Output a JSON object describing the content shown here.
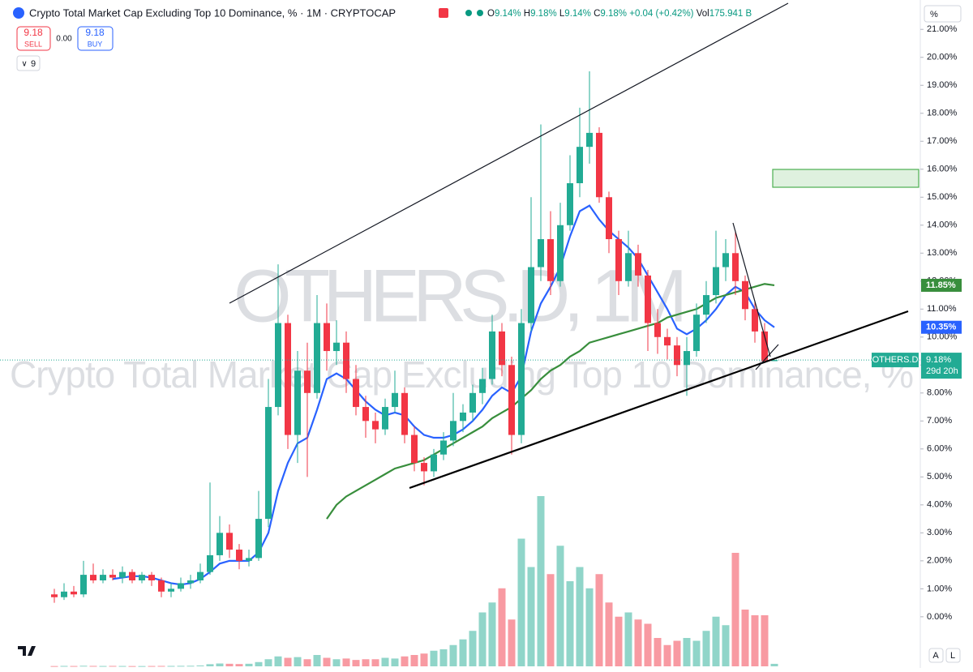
{
  "ui": {
    "sell_price": "9.18",
    "sell_label": "SELL",
    "spread": "0.00",
    "buy_price": "9.18",
    "buy_label": "BUY",
    "indicator_count": "9",
    "scale_percent": "%",
    "scale_auto": "A",
    "scale_log": "L"
  },
  "chart_data": {
    "type": "candlestick",
    "title": "Crypto Total Market Cap Excluding Top 10 Dominance, % · 1M · CRYPTOCAP",
    "readout": [
      {
        "label": "O",
        "value": "9.14%"
      },
      {
        "label": "H",
        "value": "9.18%"
      },
      {
        "label": "L",
        "value": "9.14%"
      },
      {
        "label": "C",
        "value": "9.18%"
      }
    ],
    "change": "+0.04 (+0.42%)",
    "volume_label": "Vol",
    "volume_readout": "175.941 B",
    "watermark": [
      "OTHERS.D, 1M",
      "Crypto Total Market Cap Excluding Top 10 Dominance, %"
    ],
    "up_color": "#22ab94",
    "down_color": "#f23645",
    "series": [
      {
        "name": "OTHERS.D",
        "ohlc": [
          [
            0.8,
            1.0,
            0.5,
            0.7
          ],
          [
            0.7,
            1.2,
            0.6,
            0.9
          ],
          [
            0.9,
            1.1,
            0.7,
            0.8
          ],
          [
            0.8,
            2.0,
            0.7,
            1.5
          ],
          [
            1.5,
            1.9,
            1.2,
            1.3
          ],
          [
            1.3,
            1.7,
            1.2,
            1.5
          ],
          [
            1.5,
            1.7,
            1.3,
            1.4
          ],
          [
            1.4,
            1.8,
            1.2,
            1.6
          ],
          [
            1.6,
            1.7,
            1.2,
            1.3
          ],
          [
            1.3,
            1.6,
            1.2,
            1.5
          ],
          [
            1.5,
            1.6,
            1.1,
            1.3
          ],
          [
            1.3,
            1.4,
            0.7,
            0.9
          ],
          [
            0.9,
            1.2,
            0.7,
            1.0
          ],
          [
            1.0,
            1.4,
            0.9,
            1.2
          ],
          [
            1.2,
            1.5,
            1.0,
            1.3
          ],
          [
            1.3,
            1.9,
            1.2,
            1.6
          ],
          [
            1.6,
            4.8,
            1.5,
            2.2
          ],
          [
            2.2,
            3.6,
            2.0,
            3.0
          ],
          [
            3.0,
            3.3,
            2.1,
            2.4
          ],
          [
            2.4,
            2.6,
            1.7,
            2.0
          ],
          [
            2.0,
            2.4,
            1.8,
            2.1
          ],
          [
            2.1,
            4.5,
            2.0,
            3.5
          ],
          [
            3.5,
            8.5,
            3.2,
            7.5
          ],
          [
            7.5,
            12.6,
            7.2,
            10.5
          ],
          [
            10.5,
            10.8,
            6.0,
            6.5
          ],
          [
            6.5,
            9.5,
            5.5,
            8.8
          ],
          [
            8.8,
            9.8,
            5.0,
            8.0
          ],
          [
            8.0,
            11.5,
            7.8,
            10.5
          ],
          [
            10.5,
            11.2,
            8.8,
            9.5
          ],
          [
            9.5,
            10.6,
            9.0,
            9.8
          ],
          [
            9.8,
            10.2,
            8.0,
            8.5
          ],
          [
            8.5,
            9.0,
            7.2,
            7.5
          ],
          [
            7.5,
            7.9,
            6.4,
            7.0
          ],
          [
            7.0,
            7.3,
            6.2,
            6.7
          ],
          [
            6.7,
            7.8,
            6.5,
            7.5
          ],
          [
            7.5,
            8.8,
            7.3,
            8.0
          ],
          [
            8.0,
            8.2,
            6.2,
            6.5
          ],
          [
            6.5,
            6.8,
            5.2,
            5.5
          ],
          [
            5.5,
            5.7,
            4.7,
            5.2
          ],
          [
            5.2,
            6.0,
            5.0,
            5.8
          ],
          [
            5.8,
            6.6,
            5.6,
            6.3
          ],
          [
            6.3,
            8.0,
            6.1,
            7.0
          ],
          [
            7.0,
            7.6,
            6.6,
            7.3
          ],
          [
            7.3,
            8.3,
            7.0,
            8.0
          ],
          [
            8.0,
            8.9,
            7.6,
            8.5
          ],
          [
            8.5,
            10.8,
            8.3,
            10.2
          ],
          [
            10.2,
            10.5,
            8.6,
            9.0
          ],
          [
            9.0,
            9.3,
            5.8,
            6.5
          ],
          [
            6.5,
            11.0,
            6.2,
            10.5
          ],
          [
            10.5,
            15.0,
            10.2,
            12.5
          ],
          [
            12.5,
            17.6,
            12.0,
            13.5
          ],
          [
            13.5,
            14.5,
            11.5,
            12.0
          ],
          [
            12.0,
            14.8,
            11.8,
            14.0
          ],
          [
            14.0,
            16.5,
            13.8,
            15.5
          ],
          [
            15.5,
            18.2,
            15.0,
            16.8
          ],
          [
            16.8,
            19.5,
            16.2,
            17.3
          ],
          [
            17.3,
            17.5,
            14.8,
            15.0
          ],
          [
            15.0,
            15.2,
            13.0,
            13.5
          ],
          [
            13.5,
            13.8,
            11.5,
            12.0
          ],
          [
            12.0,
            13.8,
            11.8,
            13.0
          ],
          [
            13.0,
            13.3,
            11.8,
            12.2
          ],
          [
            12.2,
            12.4,
            9.5,
            10.5
          ],
          [
            10.5,
            11.0,
            9.4,
            10.0
          ],
          [
            10.0,
            10.3,
            9.2,
            9.7
          ],
          [
            9.7,
            10.0,
            8.6,
            9.0
          ],
          [
            9.0,
            10.0,
            7.9,
            9.5
          ],
          [
            9.5,
            11.2,
            9.3,
            10.8
          ],
          [
            10.8,
            12.0,
            10.5,
            11.5
          ],
          [
            11.5,
            13.8,
            11.2,
            12.5
          ],
          [
            12.5,
            13.5,
            12.0,
            13.0
          ],
          [
            13.0,
            13.8,
            11.5,
            12.0
          ],
          [
            12.0,
            12.2,
            10.6,
            11.0
          ],
          [
            11.0,
            11.3,
            9.8,
            10.2
          ],
          [
            10.2,
            10.5,
            9.1,
            9.14
          ],
          [
            9.14,
            9.18,
            9.14,
            9.18
          ]
        ]
      }
    ],
    "price_tag": {
      "symbol": "OTHERS.D",
      "price": "9.18%",
      "countdown": "29d 20h",
      "value": 9.18
    },
    "ma_lines": [
      {
        "color": "#2962ff",
        "label": "10.35%",
        "values": [
          null,
          null,
          null,
          null,
          null,
          null,
          1.35,
          1.4,
          1.45,
          1.45,
          1.4,
          1.3,
          1.2,
          1.15,
          1.2,
          1.35,
          1.6,
          1.9,
          2.0,
          2.0,
          2.0,
          2.3,
          3.0,
          4.5,
          5.5,
          6.2,
          6.4,
          7.4,
          8.5,
          8.7,
          8.5,
          8.1,
          7.7,
          7.4,
          7.2,
          7.3,
          7.2,
          6.8,
          6.5,
          6.4,
          6.4,
          6.5,
          6.7,
          7.0,
          7.4,
          7.9,
          8.2,
          8.0,
          8.6,
          10.2,
          11.2,
          11.8,
          12.5,
          13.6,
          14.5,
          14.7,
          14.2,
          13.8,
          13.5,
          13.2,
          12.8,
          12.2,
          11.6,
          11.0,
          10.3,
          10.1,
          10.3,
          10.6,
          11.0,
          11.5,
          11.8,
          11.6,
          11.0,
          10.6,
          10.35
        ]
      },
      {
        "color": "#388e3c",
        "label": "11.85%",
        "values": [
          null,
          null,
          null,
          null,
          null,
          null,
          null,
          null,
          null,
          null,
          null,
          null,
          null,
          null,
          null,
          null,
          null,
          null,
          null,
          null,
          null,
          null,
          null,
          null,
          null,
          null,
          null,
          null,
          3.5,
          4.0,
          4.3,
          4.5,
          4.7,
          4.9,
          5.1,
          5.3,
          5.4,
          5.5,
          5.6,
          5.8,
          6.0,
          6.2,
          6.4,
          6.6,
          6.8,
          7.1,
          7.3,
          7.5,
          7.8,
          8.1,
          8.5,
          8.8,
          9.0,
          9.3,
          9.5,
          9.8,
          9.9,
          10.0,
          10.1,
          10.2,
          10.3,
          10.4,
          10.5,
          10.7,
          10.8,
          10.9,
          11.0,
          11.2,
          11.4,
          11.5,
          11.6,
          11.7,
          11.8,
          11.9,
          11.85
        ]
      }
    ],
    "volume": {
      "values": [
        20,
        30,
        25,
        40,
        30,
        25,
        30,
        25,
        20,
        20,
        25,
        30,
        30,
        35,
        40,
        60,
        150,
        200,
        180,
        160,
        180,
        300,
        500,
        700,
        600,
        650,
        500,
        800,
        600,
        500,
        550,
        450,
        500,
        500,
        600,
        550,
        700,
        800,
        900,
        1100,
        1200,
        1500,
        1900,
        2500,
        3800,
        4500,
        5500,
        3300,
        9000,
        7000,
        12000,
        6500,
        8500,
        6000,
        7000,
        5500,
        6500,
        4500,
        3500,
        3800,
        3300,
        3000,
        2000,
        1500,
        1800,
        2000,
        1800,
        2500,
        3500,
        2900,
        8000,
        4000,
        3600,
        3600,
        175.941
      ],
      "vlim": [
        0,
        12000
      ]
    },
    "ylim": [
      -1.83,
      22.05
    ],
    "yticks": [
      {
        "value": 0,
        "label": "0.00%"
      },
      {
        "value": 1,
        "label": "1.00%"
      },
      {
        "value": 2,
        "label": "2.00%"
      },
      {
        "value": 3,
        "label": "3.00%"
      },
      {
        "value": 4,
        "label": "4.00%"
      },
      {
        "value": 5,
        "label": "5.00%"
      },
      {
        "value": 6,
        "label": "6.00%"
      },
      {
        "value": 7,
        "label": "7.00%"
      },
      {
        "value": 8,
        "label": "8.00%"
      },
      {
        "value": 9,
        "label": "9.00%"
      },
      {
        "value": 10,
        "label": "10.00%"
      },
      {
        "value": 11,
        "label": "11.00%"
      },
      {
        "value": 12,
        "label": "12.00%"
      },
      {
        "value": 13,
        "label": "13.00%"
      },
      {
        "value": 14,
        "label": "14.00%"
      },
      {
        "value": 15,
        "label": "15.00%"
      },
      {
        "value": 16,
        "label": "16.00%"
      },
      {
        "value": 17,
        "label": "17.00%"
      },
      {
        "value": 18,
        "label": "18.00%"
      },
      {
        "value": 19,
        "label": "19.00%"
      },
      {
        "value": 20,
        "label": "20.00%"
      },
      {
        "value": 21,
        "label": "21.00%"
      }
    ]
  }
}
